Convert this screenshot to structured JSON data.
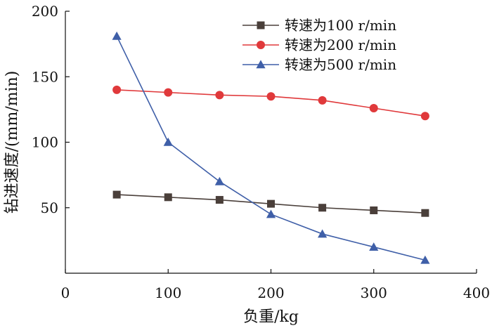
{
  "chart_data": {
    "type": "line",
    "xlabel": "负重/kg",
    "ylabel": "钻进速度/(mm/min)",
    "xlim": [
      0,
      400
    ],
    "ylim": [
      0,
      200
    ],
    "x_ticks": [
      0,
      100,
      200,
      300,
      400
    ],
    "y_ticks": [
      50,
      100,
      150,
      200
    ],
    "grid": false,
    "legend_position": "top-right",
    "x": [
      50,
      100,
      150,
      200,
      250,
      300,
      350
    ],
    "series": [
      {
        "name": "转速为100 r/min",
        "color": "#4a3f3a",
        "marker": "square",
        "values": [
          60,
          58,
          56,
          53,
          50,
          48,
          46
        ]
      },
      {
        "name": "转速为200 r/min",
        "color": "#e0393b",
        "marker": "circle",
        "values": [
          140,
          138,
          136,
          135,
          132,
          126,
          120
        ]
      },
      {
        "name": "转速为500 r/min",
        "color": "#3f5fa8",
        "marker": "triangle",
        "values": [
          181,
          100,
          70,
          45,
          30,
          20,
          10
        ]
      }
    ]
  }
}
